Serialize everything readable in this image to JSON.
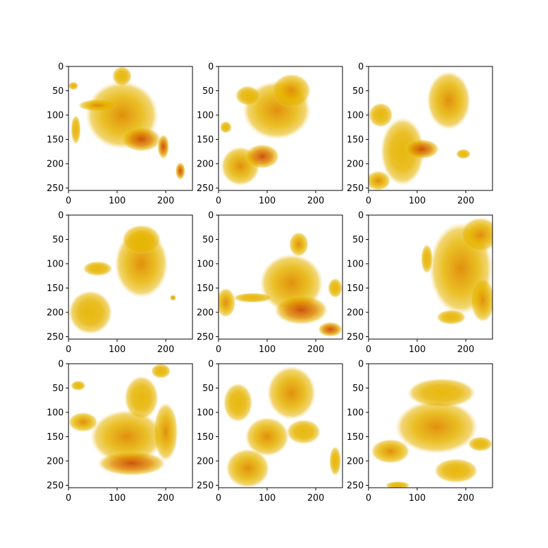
{
  "chart_data": {
    "type": "heatmap",
    "layout": "3x3 grid of image panels",
    "colormap": [
      "#ffffff",
      "#f2d36b",
      "#e6b400",
      "#e08a00",
      "#c94a00",
      "#8b1a1a"
    ],
    "grid": false,
    "panels": [
      {
        "row": 0,
        "col": 0,
        "xlim": [
          0,
          255
        ],
        "ylim": [
          255,
          0
        ],
        "xticks": [
          "0",
          "100",
          "200"
        ],
        "yticks": [
          "0",
          "50",
          "100",
          "150",
          "200",
          "250"
        ],
        "blobs": [
          {
            "cx": 110,
            "cy": 100,
            "rx": 75,
            "ry": 70,
            "intensity": 0.55
          },
          {
            "cx": 110,
            "cy": 20,
            "rx": 20,
            "ry": 20,
            "intensity": 0.35
          },
          {
            "cx": 150,
            "cy": 150,
            "rx": 40,
            "ry": 25,
            "intensity": 0.75
          },
          {
            "cx": 60,
            "cy": 80,
            "rx": 40,
            "ry": 12,
            "intensity": 0.6
          },
          {
            "cx": 195,
            "cy": 165,
            "rx": 12,
            "ry": 25,
            "intensity": 0.7
          },
          {
            "cx": 230,
            "cy": 215,
            "rx": 10,
            "ry": 18,
            "intensity": 0.8
          },
          {
            "cx": 15,
            "cy": 130,
            "rx": 10,
            "ry": 30,
            "intensity": 0.4
          },
          {
            "cx": 10,
            "cy": 40,
            "rx": 10,
            "ry": 8,
            "intensity": 0.45
          }
        ]
      },
      {
        "row": 0,
        "col": 1,
        "xlim": [
          0,
          255
        ],
        "ylim": [
          255,
          0
        ],
        "xticks": [
          "0",
          "100",
          "200"
        ],
        "yticks": [
          "0",
          "50",
          "100",
          "150",
          "200",
          "250"
        ],
        "blobs": [
          {
            "cx": 120,
            "cy": 90,
            "rx": 70,
            "ry": 60,
            "intensity": 0.5
          },
          {
            "cx": 150,
            "cy": 50,
            "rx": 40,
            "ry": 35,
            "intensity": 0.55
          },
          {
            "cx": 45,
            "cy": 205,
            "rx": 40,
            "ry": 40,
            "intensity": 0.5
          },
          {
            "cx": 90,
            "cy": 185,
            "rx": 35,
            "ry": 25,
            "intensity": 0.7
          },
          {
            "cx": 60,
            "cy": 60,
            "rx": 25,
            "ry": 20,
            "intensity": 0.3
          },
          {
            "cx": 15,
            "cy": 125,
            "rx": 12,
            "ry": 12,
            "intensity": 0.35
          }
        ]
      },
      {
        "row": 0,
        "col": 2,
        "xlim": [
          0,
          255
        ],
        "ylim": [
          255,
          0
        ],
        "xticks": [
          "0",
          "100",
          "200"
        ],
        "yticks": [
          "0",
          "50",
          "100",
          "150",
          "200",
          "250"
        ],
        "blobs": [
          {
            "cx": 165,
            "cy": 70,
            "rx": 45,
            "ry": 60,
            "intensity": 0.55
          },
          {
            "cx": 70,
            "cy": 175,
            "rx": 45,
            "ry": 70,
            "intensity": 0.45
          },
          {
            "cx": 110,
            "cy": 170,
            "rx": 35,
            "ry": 20,
            "intensity": 0.75
          },
          {
            "cx": 20,
            "cy": 235,
            "rx": 25,
            "ry": 20,
            "intensity": 0.5
          },
          {
            "cx": 25,
            "cy": 100,
            "rx": 25,
            "ry": 25,
            "intensity": 0.35
          },
          {
            "cx": 195,
            "cy": 180,
            "rx": 15,
            "ry": 10,
            "intensity": 0.3
          }
        ]
      },
      {
        "row": 1,
        "col": 0,
        "xlim": [
          0,
          255
        ],
        "ylim": [
          255,
          0
        ],
        "xticks": [
          "0",
          "100",
          "200"
        ],
        "yticks": [
          "0",
          "50",
          "100",
          "150",
          "200",
          "250"
        ],
        "blobs": [
          {
            "cx": 150,
            "cy": 100,
            "rx": 55,
            "ry": 70,
            "intensity": 0.5
          },
          {
            "cx": 45,
            "cy": 200,
            "rx": 45,
            "ry": 45,
            "intensity": 0.45
          },
          {
            "cx": 150,
            "cy": 50,
            "rx": 40,
            "ry": 30,
            "intensity": 0.3
          },
          {
            "cx": 60,
            "cy": 110,
            "rx": 30,
            "ry": 15,
            "intensity": 0.35
          },
          {
            "cx": 215,
            "cy": 170,
            "rx": 6,
            "ry": 6,
            "intensity": 0.5
          }
        ]
      },
      {
        "row": 1,
        "col": 1,
        "xlim": [
          0,
          255
        ],
        "ylim": [
          255,
          0
        ],
        "xticks": [
          "0",
          "100",
          "200"
        ],
        "yticks": [
          "0",
          "50",
          "100",
          "150",
          "200",
          "250"
        ],
        "blobs": [
          {
            "cx": 150,
            "cy": 140,
            "rx": 65,
            "ry": 60,
            "intensity": 0.6
          },
          {
            "cx": 170,
            "cy": 195,
            "rx": 55,
            "ry": 30,
            "intensity": 0.8
          },
          {
            "cx": 165,
            "cy": 60,
            "rx": 20,
            "ry": 25,
            "intensity": 0.5
          },
          {
            "cx": 15,
            "cy": 180,
            "rx": 20,
            "ry": 30,
            "intensity": 0.5
          },
          {
            "cx": 70,
            "cy": 170,
            "rx": 40,
            "ry": 10,
            "intensity": 0.4
          },
          {
            "cx": 230,
            "cy": 235,
            "rx": 25,
            "ry": 15,
            "intensity": 0.75
          },
          {
            "cx": 240,
            "cy": 150,
            "rx": 15,
            "ry": 20,
            "intensity": 0.45
          }
        ]
      },
      {
        "row": 1,
        "col": 2,
        "xlim": [
          0,
          255
        ],
        "ylim": [
          255,
          0
        ],
        "xticks": [
          "0",
          "100",
          "200"
        ],
        "yticks": [
          "0",
          "50",
          "100",
          "150",
          "200",
          "250"
        ],
        "blobs": [
          {
            "cx": 190,
            "cy": 110,
            "rx": 65,
            "ry": 95,
            "intensity": 0.5
          },
          {
            "cx": 230,
            "cy": 40,
            "rx": 40,
            "ry": 35,
            "intensity": 0.55
          },
          {
            "cx": 235,
            "cy": 175,
            "rx": 25,
            "ry": 45,
            "intensity": 0.65
          },
          {
            "cx": 120,
            "cy": 90,
            "rx": 12,
            "ry": 30,
            "intensity": 0.3
          },
          {
            "cx": 170,
            "cy": 210,
            "rx": 30,
            "ry": 15,
            "intensity": 0.3
          }
        ]
      },
      {
        "row": 2,
        "col": 0,
        "xlim": [
          0,
          255
        ],
        "ylim": [
          255,
          0
        ],
        "xticks": [
          "0",
          "100",
          "200"
        ],
        "yticks": [
          "0",
          "50",
          "100",
          "150",
          "200",
          "250"
        ],
        "blobs": [
          {
            "cx": 120,
            "cy": 150,
            "rx": 75,
            "ry": 55,
            "intensity": 0.5
          },
          {
            "cx": 150,
            "cy": 70,
            "rx": 35,
            "ry": 45,
            "intensity": 0.4
          },
          {
            "cx": 130,
            "cy": 205,
            "rx": 70,
            "ry": 25,
            "intensity": 0.75
          },
          {
            "cx": 200,
            "cy": 140,
            "rx": 25,
            "ry": 60,
            "intensity": 0.65
          },
          {
            "cx": 30,
            "cy": 120,
            "rx": 30,
            "ry": 20,
            "intensity": 0.55
          },
          {
            "cx": 190,
            "cy": 15,
            "rx": 20,
            "ry": 15,
            "intensity": 0.4
          },
          {
            "cx": 20,
            "cy": 45,
            "rx": 15,
            "ry": 10,
            "intensity": 0.3
          }
        ]
      },
      {
        "row": 2,
        "col": 1,
        "xlim": [
          0,
          255
        ],
        "ylim": [
          255,
          0
        ],
        "xticks": [
          "0",
          "100",
          "200"
        ],
        "yticks": [
          "0",
          "50",
          "100",
          "150",
          "200",
          "250"
        ],
        "blobs": [
          {
            "cx": 150,
            "cy": 60,
            "rx": 50,
            "ry": 55,
            "intensity": 0.5
          },
          {
            "cx": 100,
            "cy": 150,
            "rx": 45,
            "ry": 40,
            "intensity": 0.6
          },
          {
            "cx": 60,
            "cy": 215,
            "rx": 45,
            "ry": 40,
            "intensity": 0.5
          },
          {
            "cx": 40,
            "cy": 80,
            "rx": 30,
            "ry": 40,
            "intensity": 0.4
          },
          {
            "cx": 175,
            "cy": 140,
            "rx": 35,
            "ry": 25,
            "intensity": 0.45
          },
          {
            "cx": 240,
            "cy": 200,
            "rx": 12,
            "ry": 30,
            "intensity": 0.3
          }
        ]
      },
      {
        "row": 2,
        "col": 2,
        "xlim": [
          0,
          255
        ],
        "ylim": [
          255,
          0
        ],
        "xticks": [
          "0",
          "100",
          "200"
        ],
        "yticks": [
          "0",
          "50",
          "100",
          "150",
          "200",
          "250"
        ],
        "blobs": [
          {
            "cx": 140,
            "cy": 130,
            "rx": 85,
            "ry": 55,
            "intensity": 0.55
          },
          {
            "cx": 150,
            "cy": 60,
            "rx": 70,
            "ry": 30,
            "intensity": 0.4
          },
          {
            "cx": 45,
            "cy": 180,
            "rx": 40,
            "ry": 25,
            "intensity": 0.55
          },
          {
            "cx": 180,
            "cy": 220,
            "rx": 45,
            "ry": 25,
            "intensity": 0.45
          },
          {
            "cx": 230,
            "cy": 165,
            "rx": 25,
            "ry": 15,
            "intensity": 0.45
          },
          {
            "cx": 60,
            "cy": 250,
            "rx": 25,
            "ry": 8,
            "intensity": 0.35
          }
        ]
      }
    ]
  }
}
